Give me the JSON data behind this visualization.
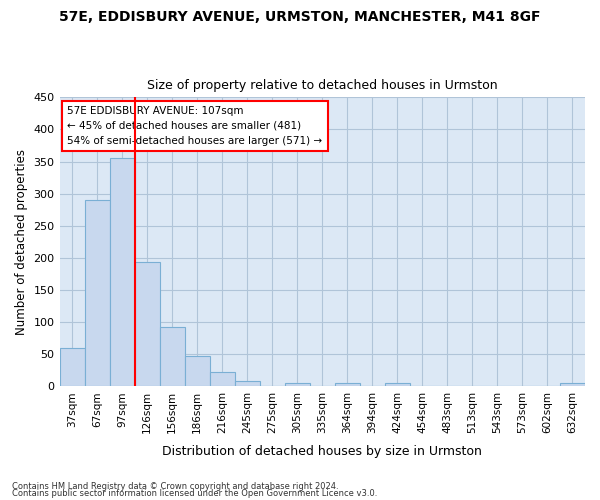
{
  "title1": "57E, EDDISBURY AVENUE, URMSTON, MANCHESTER, M41 8GF",
  "title2": "Size of property relative to detached houses in Urmston",
  "xlabel": "Distribution of detached houses by size in Urmston",
  "ylabel": "Number of detached properties",
  "footer1": "Contains HM Land Registry data © Crown copyright and database right 2024.",
  "footer2": "Contains public sector information licensed under the Open Government Licence v3.0.",
  "bar_color": "#c8d8ee",
  "bar_edge_color": "#7aafd4",
  "categories": [
    "37sqm",
    "67sqm",
    "97sqm",
    "126sqm",
    "156sqm",
    "186sqm",
    "216sqm",
    "245sqm",
    "275sqm",
    "305sqm",
    "335sqm",
    "364sqm",
    "394sqm",
    "424sqm",
    "454sqm",
    "483sqm",
    "513sqm",
    "543sqm",
    "573sqm",
    "602sqm",
    "632sqm"
  ],
  "values": [
    60,
    290,
    355,
    193,
    93,
    47,
    22,
    9,
    0,
    5,
    0,
    5,
    0,
    5,
    0,
    0,
    0,
    0,
    0,
    0,
    5
  ],
  "ylim": [
    0,
    450
  ],
  "yticks": [
    0,
    50,
    100,
    150,
    200,
    250,
    300,
    350,
    400,
    450
  ],
  "annotation_text1": "57E EDDISBURY AVENUE: 107sqm",
  "annotation_text2": "← 45% of detached houses are smaller (481)",
  "annotation_text3": "54% of semi-detached houses are larger (571) →",
  "annotation_box_color": "white",
  "annotation_border_color": "red",
  "vline_color": "red",
  "vline_pos": 2.5,
  "background_color": "#dce8f5",
  "plot_bg_color": "#dce8f5",
  "grid_color": "#b0c4d8",
  "fig_bg_color": "#ffffff"
}
